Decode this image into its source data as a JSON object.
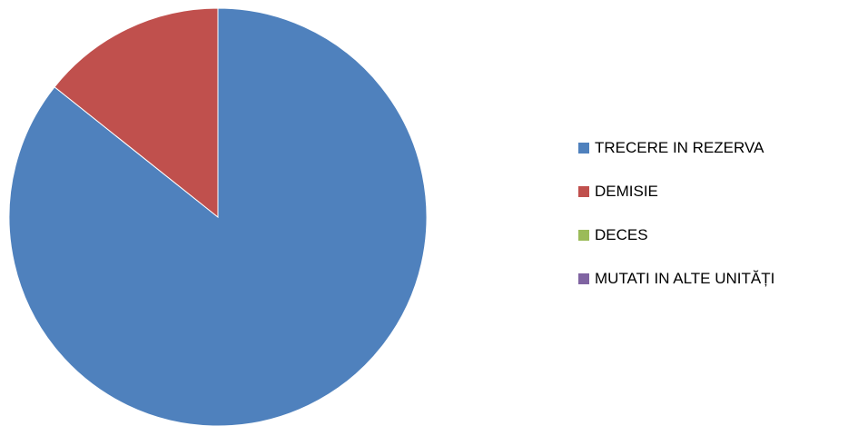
{
  "chart_data": {
    "type": "pie",
    "categories": [
      "TRECERE IN REZERVA",
      "DEMISIE",
      "DECES",
      "MUTATI IN ALTE UNITĂȚI"
    ],
    "values": [
      85.7,
      14.3,
      0,
      0
    ],
    "colors": [
      "#4F81BD",
      "#C0504D",
      "#9BBB59",
      "#8064A2"
    ],
    "title": "",
    "legend_position": "right",
    "start_angle": "12 o'clock, clockwise"
  }
}
